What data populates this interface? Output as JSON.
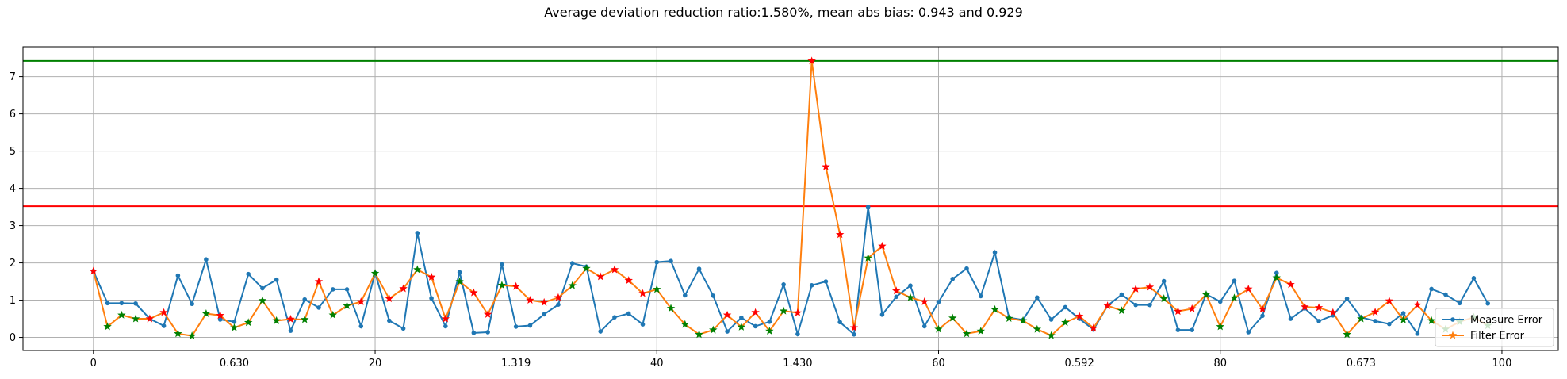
{
  "chart_data": {
    "type": "line",
    "title": "Average deviation reduction ratio:1.580%, mean abs bias: 0.943 and 0.929",
    "xlabel": "",
    "ylabel": "",
    "xlim": [
      -5,
      104
    ],
    "ylim": [
      -0.35,
      7.8
    ],
    "x_ticks": [
      0,
      20,
      40,
      60,
      80,
      100
    ],
    "y_ticks": [
      0,
      1,
      2,
      3,
      4,
      5,
      6,
      7
    ],
    "grid": true,
    "legend_position": "lower-right",
    "segment_annotations": [
      {
        "x": 10,
        "text": "0.630"
      },
      {
        "x": 30,
        "text": "1.319"
      },
      {
        "x": 50,
        "text": "1.430"
      },
      {
        "x": 70,
        "text": "0.592"
      },
      {
        "x": 90,
        "text": "0.673"
      }
    ],
    "thresholds": [
      {
        "y": 7.42,
        "color": "#008000"
      },
      {
        "y": 3.52,
        "color": "#ff0000"
      }
    ],
    "colors": {
      "measure": "#1f77b4",
      "filter": "#ff7f0e",
      "marker_improved": "#008000",
      "marker_worse": "#ff0000",
      "grid": "#b0b0b0"
    },
    "series": [
      {
        "name": "Measure Error",
        "values": [
          1.78,
          0.92,
          0.92,
          0.91,
          0.5,
          0.31,
          1.66,
          0.9,
          2.09,
          0.48,
          0.42,
          1.7,
          1.32,
          1.55,
          0.18,
          1.02,
          0.8,
          1.29,
          1.29,
          0.3,
          1.73,
          0.45,
          0.24,
          2.8,
          1.05,
          0.3,
          1.75,
          0.12,
          0.14,
          1.96,
          0.29,
          0.32,
          0.62,
          0.88,
          1.99,
          1.9,
          0.16,
          0.54,
          0.64,
          0.35,
          2.02,
          2.05,
          1.13,
          1.84,
          1.12,
          0.16,
          0.53,
          0.3,
          0.42,
          1.42,
          0.09,
          1.4,
          1.5,
          0.41,
          0.08,
          3.5,
          0.61,
          1.09,
          1.39,
          0.3,
          0.95,
          1.57,
          1.85,
          1.11,
          2.28,
          0.53,
          0.47,
          1.07,
          0.48,
          0.81,
          0.5,
          0.21,
          0.85,
          1.15,
          0.87,
          0.87,
          1.51,
          0.2,
          0.2,
          1.16,
          0.96,
          1.52,
          0.14,
          0.58,
          1.73,
          0.5,
          0.78,
          0.44,
          0.59,
          1.04,
          0.54,
          0.44,
          0.36,
          0.65,
          0.1,
          1.3,
          1.15,
          0.92,
          1.59,
          0.91
        ]
      },
      {
        "name": "Filter Error",
        "values": [
          1.78,
          0.29,
          0.6,
          0.5,
          0.5,
          0.67,
          0.1,
          0.04,
          0.64,
          0.59,
          0.26,
          0.4,
          0.99,
          0.45,
          0.49,
          0.48,
          1.5,
          0.6,
          0.85,
          0.96,
          1.72,
          1.04,
          1.31,
          1.82,
          1.62,
          0.5,
          1.5,
          1.2,
          0.62,
          1.4,
          1.37,
          1.0,
          0.94,
          1.07,
          1.39,
          1.85,
          1.63,
          1.82,
          1.53,
          1.18,
          1.29,
          0.78,
          0.35,
          0.08,
          0.2,
          0.6,
          0.28,
          0.67,
          0.17,
          0.71,
          0.66,
          7.42,
          4.58,
          2.76,
          0.26,
          2.13,
          2.45,
          1.25,
          1.07,
          0.96,
          0.22,
          0.52,
          0.1,
          0.17,
          0.75,
          0.51,
          0.45,
          0.22,
          0.05,
          0.4,
          0.57,
          0.25,
          0.85,
          0.72,
          1.3,
          1.35,
          1.04,
          0.7,
          0.77,
          1.15,
          0.29,
          1.06,
          1.3,
          0.76,
          1.6,
          1.42,
          0.82,
          0.8,
          0.67,
          0.08,
          0.5,
          0.68,
          0.98,
          0.47,
          0.87,
          0.45,
          0.22,
          0.42,
          0.54,
          0.32
        ]
      }
    ]
  }
}
